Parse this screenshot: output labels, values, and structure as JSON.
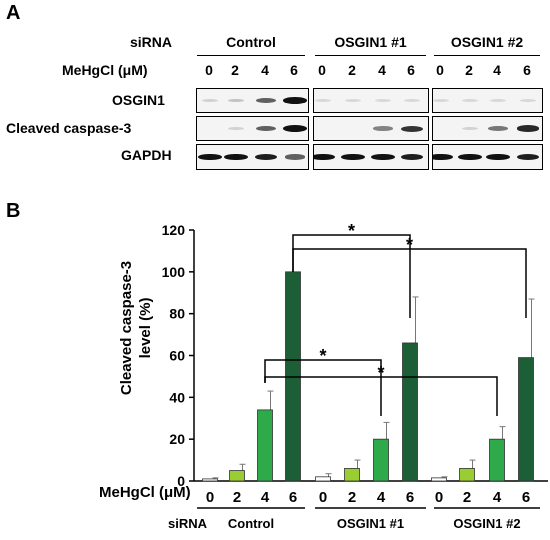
{
  "panel_a": {
    "letter": "A",
    "sirna_label": "siRNA",
    "dose_label": "MeHgCl (μM)",
    "groups": [
      "Control",
      "OSGIN1 #1",
      "OSGIN1 #2"
    ],
    "doses": [
      "0",
      "2",
      "4",
      "6",
      "0",
      "2",
      "4",
      "6",
      "0",
      "2",
      "4",
      "6"
    ],
    "blots": [
      {
        "name": "OSGIN1",
        "band_intensity": [
          0.05,
          0.12,
          0.55,
          0.9,
          0.02,
          0.02,
          0.02,
          0.02,
          0.02,
          0.02,
          0.02,
          0.02
        ]
      },
      {
        "name": "Cleaved caspase-3",
        "band_intensity": [
          0.0,
          0.05,
          0.55,
          0.95,
          0.0,
          0.0,
          0.4,
          0.75,
          0.0,
          0.05,
          0.45,
          0.8
        ]
      },
      {
        "name": "GAPDH",
        "band_intensity": [
          0.9,
          0.9,
          0.85,
          0.55,
          0.9,
          0.9,
          0.9,
          0.85,
          0.9,
          0.9,
          0.9,
          0.85
        ]
      }
    ]
  },
  "panel_b": {
    "letter": "B",
    "sirna_label": "siRNA",
    "dose_label": "MeHgCl (μM)",
    "significance_marker": "*"
  },
  "chart_data": {
    "type": "bar",
    "ylabel": "Cleaved caspase-3\nlevel (%)",
    "ylim": [
      0,
      120
    ],
    "yticks": [
      0,
      20,
      40,
      60,
      80,
      100,
      120
    ],
    "groups": [
      "Control",
      "OSGIN1 #1",
      "OSGIN1 #2"
    ],
    "categories": [
      "0",
      "2",
      "4",
      "6",
      "0",
      "2",
      "4",
      "6",
      "0",
      "2",
      "4",
      "6"
    ],
    "values": [
      1,
      5,
      34,
      100,
      2,
      6,
      20,
      66,
      1.5,
      6,
      20,
      59
    ],
    "errors": [
      0.5,
      3,
      9,
      0,
      1.5,
      4,
      8,
      22,
      0.5,
      4,
      6,
      28
    ],
    "colors": [
      "#ffffff",
      "#9acd32",
      "#2eaa4a",
      "#1c5e35",
      "#ffffff",
      "#9acd32",
      "#2eaa4a",
      "#1c5e35",
      "#ffffff",
      "#9acd32",
      "#2eaa4a",
      "#1c5e35"
    ],
    "comparisons": [
      {
        "from": 3,
        "to": 7,
        "label": "*"
      },
      {
        "from": 3,
        "to": 11,
        "label": "*"
      },
      {
        "from": 2,
        "to": 6,
        "label": "*"
      },
      {
        "from": 2,
        "to": 10,
        "label": "*"
      }
    ]
  }
}
